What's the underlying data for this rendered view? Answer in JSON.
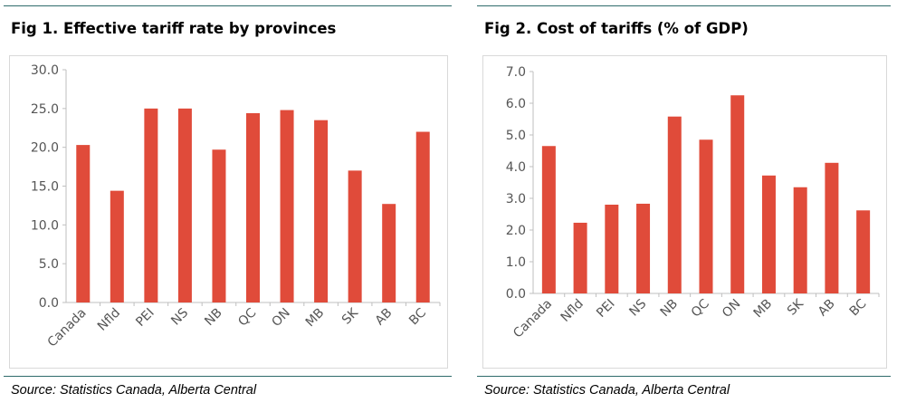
{
  "chart_data": [
    {
      "type": "bar",
      "title": "Fig 1. Effective tariff rate by provinces",
      "categories": [
        "Canada",
        "Nfld",
        "PEI",
        "NS",
        "NB",
        "QC",
        "ON",
        "MB",
        "SK",
        "AB",
        "BC"
      ],
      "values": [
        20.3,
        14.4,
        25.0,
        25.0,
        19.7,
        24.4,
        24.8,
        23.5,
        17.0,
        12.7,
        22.0
      ],
      "ylim": [
        0,
        30
      ],
      "yticks": [
        "0.0",
        "5.0",
        "10.0",
        "15.0",
        "20.0",
        "25.0",
        "30.0"
      ],
      "xlabel": "",
      "ylabel": "",
      "grid": false,
      "bar_color": "#e04b3a",
      "source": "Source: Statistics Canada, Alberta Central"
    },
    {
      "type": "bar",
      "title": "Fig 2. Cost of tariffs (% of GDP)",
      "categories": [
        "Canada",
        "Nfld",
        "PEI",
        "NS",
        "NB",
        "QC",
        "ON",
        "MB",
        "SK",
        "AB",
        "BC"
      ],
      "values": [
        4.65,
        2.23,
        2.8,
        2.83,
        5.58,
        4.85,
        6.25,
        3.72,
        3.35,
        4.12,
        2.62
      ],
      "ylim": [
        0,
        7
      ],
      "yticks": [
        "0.0",
        "1.0",
        "2.0",
        "3.0",
        "4.0",
        "5.0",
        "6.0",
        "7.0"
      ],
      "xlabel": "",
      "ylabel": "",
      "grid": false,
      "bar_color": "#e04b3a",
      "source": "Source: Statistics Canada, Alberta Central"
    }
  ]
}
